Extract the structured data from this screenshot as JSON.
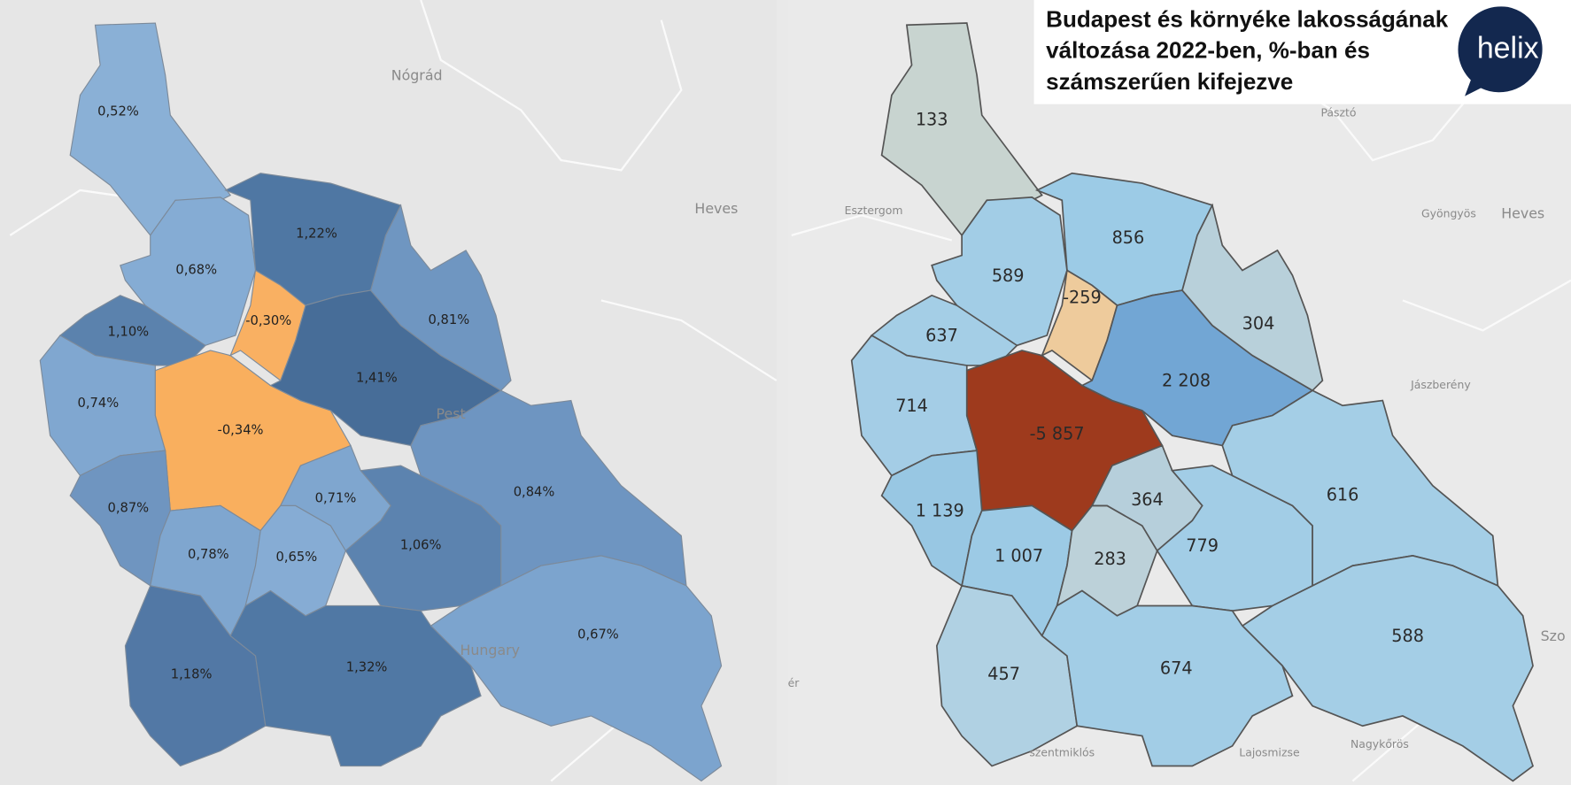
{
  "title_lines": [
    "Budapest és környéke lakosságának",
    "változása 2022-ben, %-ban és",
    "számszerűen kifejezve"
  ],
  "logo": "helix",
  "maps": [
    {
      "regions": [
        {
          "label": "0,52%"
        },
        {
          "label": "1,22%"
        },
        {
          "label": "0,68%"
        },
        {
          "label": "1,10%"
        },
        {
          "label": "0,74%"
        },
        {
          "label": "-0,34%"
        },
        {
          "label": "-0,30%"
        },
        {
          "label": "1,41%"
        },
        {
          "label": "0,81%"
        },
        {
          "label": "0,87%"
        },
        {
          "label": "0,78%"
        },
        {
          "label": "0,65%"
        },
        {
          "label": "0,71%"
        },
        {
          "label": "1,06%"
        },
        {
          "label": "0,84%"
        },
        {
          "label": "0,67%"
        },
        {
          "label": "1,18%"
        },
        {
          "label": "1,32%"
        }
      ],
      "places": [
        "Nógrád",
        "Heves",
        "Pest",
        "Hungary"
      ]
    },
    {
      "regions": [
        {
          "label": "133"
        },
        {
          "label": "856"
        },
        {
          "label": "589"
        },
        {
          "label": "637"
        },
        {
          "label": "714"
        },
        {
          "label": "-5 857"
        },
        {
          "label": "-259"
        },
        {
          "label": "2 208"
        },
        {
          "label": "304"
        },
        {
          "label": "1 139"
        },
        {
          "label": "1 007"
        },
        {
          "label": "283"
        },
        {
          "label": "364"
        },
        {
          "label": "779"
        },
        {
          "label": "616"
        },
        {
          "label": "588"
        },
        {
          "label": "457"
        },
        {
          "label": "674"
        }
      ],
      "places": [
        "Pásztó",
        "Esztergom",
        "Gyöngyös",
        "Heves",
        "Jászberény",
        "Szo",
        "Lajosmizse",
        "Nagykőrös",
        "szentmiklós",
        "ér"
      ]
    }
  ]
}
